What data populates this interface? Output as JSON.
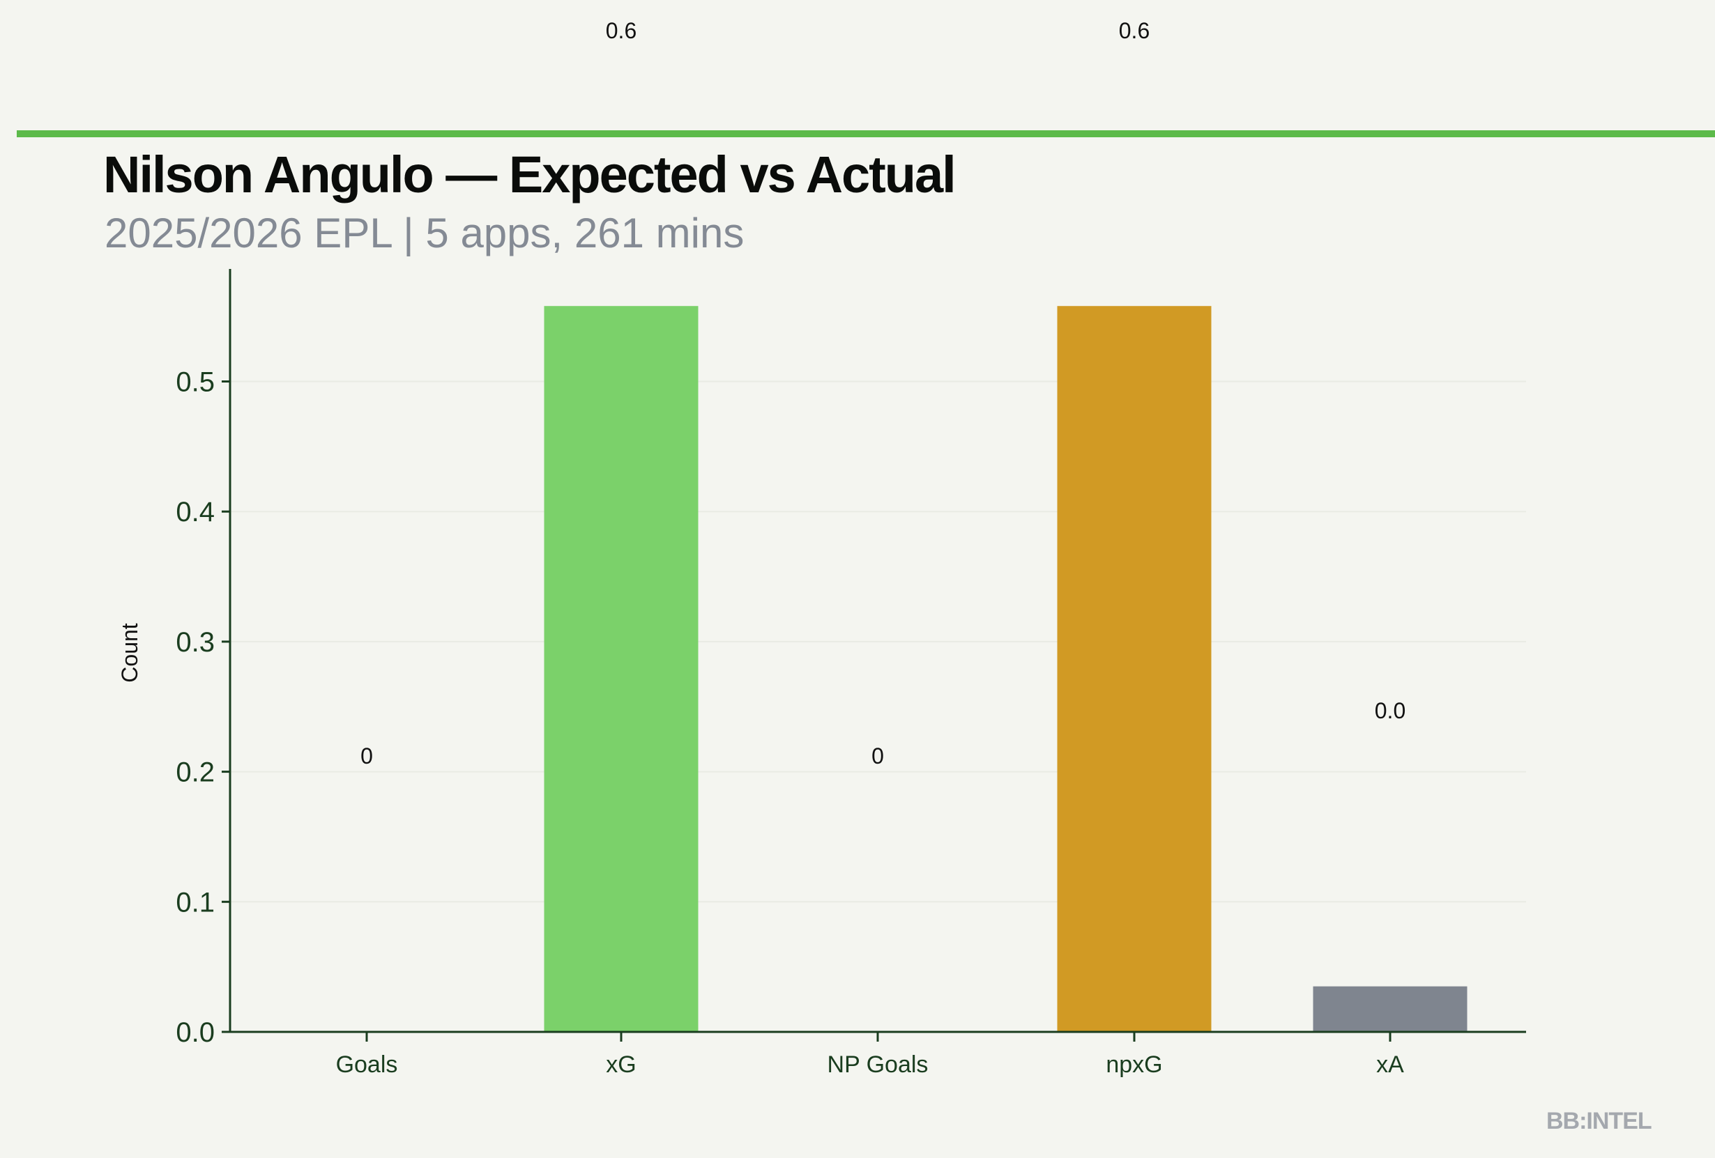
{
  "header": {
    "title": "Nilson Angulo — Expected vs Actual",
    "subtitle": "2025/2026 EPL | 5 apps, 261 mins"
  },
  "brand": "BB:INTEL",
  "colors": {
    "accent": "#5cba4a",
    "axis": "#1a3d1f",
    "xG": "#7bd16a",
    "npxG": "#d19a24",
    "xA": "#7f858f"
  },
  "chart_data": {
    "type": "bar",
    "title": "Nilson Angulo — Expected vs Actual",
    "xlabel": "",
    "ylabel": "Count",
    "ylim": [
      0,
      0.59
    ],
    "yticks": [
      "0.0",
      "0.1",
      "0.2",
      "0.3",
      "0.4",
      "0.5"
    ],
    "grid": true,
    "categories": [
      "Goals",
      "xG",
      "NP Goals",
      "npxG",
      "xA"
    ],
    "values": [
      0,
      0.558,
      0,
      0.558,
      0.035
    ],
    "bar_colors": [
      "#7bd16a",
      "#7bd16a",
      "#d19a24",
      "#d19a24",
      "#7f858f"
    ],
    "data_labels": [
      "0",
      "0.6",
      "0",
      "0.6",
      "0.0"
    ]
  }
}
